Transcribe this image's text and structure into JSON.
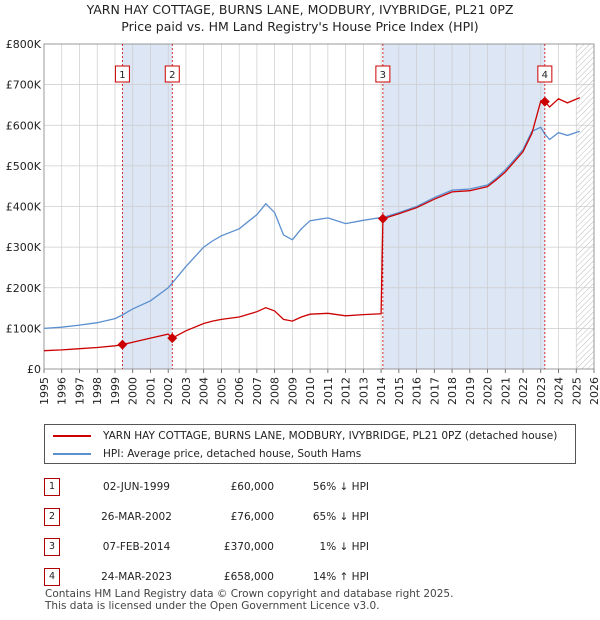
{
  "title_line1": "YARN HAY COTTAGE, BURNS LANE, MODBURY, IVYBRIDGE, PL21 0PZ",
  "title_line2": "Price paid vs. HM Land Registry's House Price Index (HPI)",
  "colors": {
    "price": "#cc0000",
    "hpi": "#5b8fcf",
    "shade": "#dce6f5",
    "grid": "#cccccc"
  },
  "chart_data": {
    "type": "line",
    "xlim": [
      1995,
      2026
    ],
    "ylim": [
      0,
      800000
    ],
    "y_ticks": [
      0,
      100000,
      200000,
      300000,
      400000,
      500000,
      600000,
      700000,
      800000
    ],
    "y_tick_labels": [
      "£0",
      "£100K",
      "£200K",
      "£300K",
      "£400K",
      "£500K",
      "£600K",
      "£700K",
      "£800K"
    ],
    "x_ticks": [
      1995,
      1996,
      1997,
      1998,
      1999,
      2000,
      2001,
      2002,
      2003,
      2004,
      2005,
      2006,
      2007,
      2008,
      2009,
      2010,
      2011,
      2012,
      2013,
      2014,
      2015,
      2016,
      2017,
      2018,
      2019,
      2020,
      2021,
      2022,
      2023,
      2024,
      2025,
      2026
    ],
    "shaded_ranges": [
      [
        1999.42,
        2002.23
      ],
      [
        2014.1,
        2023.23
      ]
    ],
    "future_hatch_from": 2025.0,
    "series": [
      {
        "name": "HPI: Average price, detached house, South Hams",
        "color": "#5b8fcf",
        "x": [
          1995,
          1996,
          1997,
          1998,
          1999,
          1999.42,
          2000,
          2001,
          2002,
          2002.23,
          2003,
          2004,
          2004.5,
          2005,
          2006,
          2007,
          2007.5,
          2008,
          2008.5,
          2009,
          2009.5,
          2010,
          2011,
          2012,
          2013,
          2014,
          2014.1,
          2015,
          2016,
          2017,
          2018,
          2019,
          2020,
          2020.5,
          2021,
          2021.5,
          2022,
          2022.5,
          2023,
          2023.23,
          2023.5,
          2024,
          2024.5,
          2025.2
        ],
        "values": [
          100000,
          103000,
          108000,
          114000,
          124000,
          133000,
          148000,
          168000,
          200000,
          212000,
          252000,
          300000,
          315000,
          328000,
          345000,
          380000,
          407000,
          385000,
          330000,
          318000,
          345000,
          365000,
          372000,
          358000,
          366000,
          373000,
          373000,
          385000,
          400000,
          422000,
          440000,
          443000,
          453000,
          470000,
          490000,
          515000,
          540000,
          585000,
          595000,
          578000,
          565000,
          582000,
          575000,
          585000
        ]
      },
      {
        "name": "YARN HAY COTTAGE, BURNS LANE, MODBURY, IVYBRIDGE, PL21 0PZ (detached house)",
        "color": "#cc0000",
        "x": [
          1995,
          1996,
          1997,
          1998,
          1999,
          1999.42,
          2000,
          2001,
          2002,
          2002.23,
          2003,
          2004,
          2004.5,
          2005,
          2006,
          2007,
          2007.5,
          2008,
          2008.5,
          2009,
          2009.5,
          2010,
          2011,
          2012,
          2013,
          2014,
          2014.1,
          2015,
          2016,
          2017,
          2018,
          2019,
          2020,
          2020.5,
          2021,
          2021.5,
          2022,
          2022.5,
          2023,
          2023.23,
          2023.5,
          2024,
          2024.5,
          2025.2
        ],
        "values": [
          45000,
          47000,
          50000,
          53000,
          57000,
          60000,
          66000,
          76000,
          86000,
          76000,
          94000,
          112000,
          118000,
          122000,
          128000,
          141000,
          151000,
          143000,
          122000,
          118000,
          128000,
          135000,
          137000,
          131000,
          134000,
          136000,
          370000,
          382000,
          397000,
          418000,
          436000,
          439000,
          449000,
          466000,
          485000,
          510000,
          535000,
          580000,
          660000,
          658000,
          645000,
          665000,
          655000,
          668000
        ]
      }
    ],
    "sales_markers": [
      {
        "label": "1",
        "x": 1999.42,
        "y": 60000
      },
      {
        "label": "2",
        "x": 2002.23,
        "y": 76000
      },
      {
        "label": "3",
        "x": 2014.1,
        "y": 370000
      },
      {
        "label": "4",
        "x": 2023.23,
        "y": 658000
      }
    ]
  },
  "legend": {
    "price_label": "YARN HAY COTTAGE, BURNS LANE, MODBURY, IVYBRIDGE, PL21 0PZ (detached house)",
    "hpi_label": "HPI: Average price, detached house, South Hams"
  },
  "sales": [
    {
      "num": "1",
      "date": "02-JUN-1999",
      "price": "£60,000",
      "hpi": "56% ↓ HPI"
    },
    {
      "num": "2",
      "date": "26-MAR-2002",
      "price": "£76,000",
      "hpi": "65% ↓ HPI"
    },
    {
      "num": "3",
      "date": "07-FEB-2014",
      "price": "£370,000",
      "hpi": "1% ↓ HPI"
    },
    {
      "num": "4",
      "date": "24-MAR-2023",
      "price": "£658,000",
      "hpi": "14% ↑ HPI"
    }
  ],
  "footer_line1": "Contains HM Land Registry data © Crown copyright and database right 2025.",
  "footer_line2": "This data is licensed under the Open Government Licence v3.0."
}
